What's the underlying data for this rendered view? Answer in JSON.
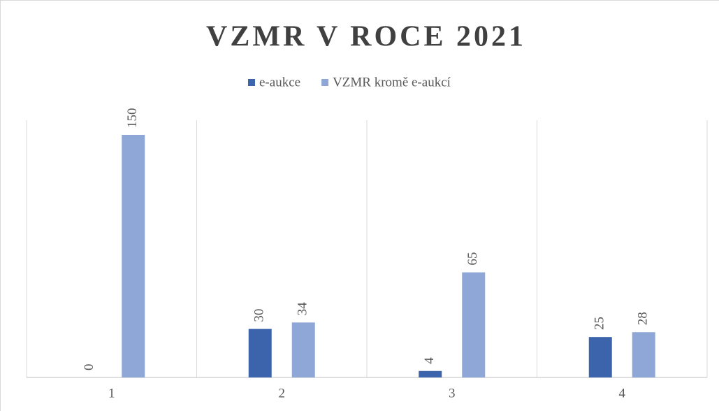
{
  "chart_data": {
    "type": "bar",
    "title": "VZMR V ROCE 2021",
    "categories": [
      "1",
      "2",
      "3",
      "4"
    ],
    "series": [
      {
        "name": "e-aukce",
        "color": "#3b64ad",
        "values": [
          0,
          30,
          4,
          25
        ]
      },
      {
        "name": "VZMR kromě e-aukcí",
        "color": "#8fa7d6",
        "values": [
          150,
          34,
          65,
          28
        ]
      }
    ],
    "ylim": [
      0,
      150
    ]
  }
}
